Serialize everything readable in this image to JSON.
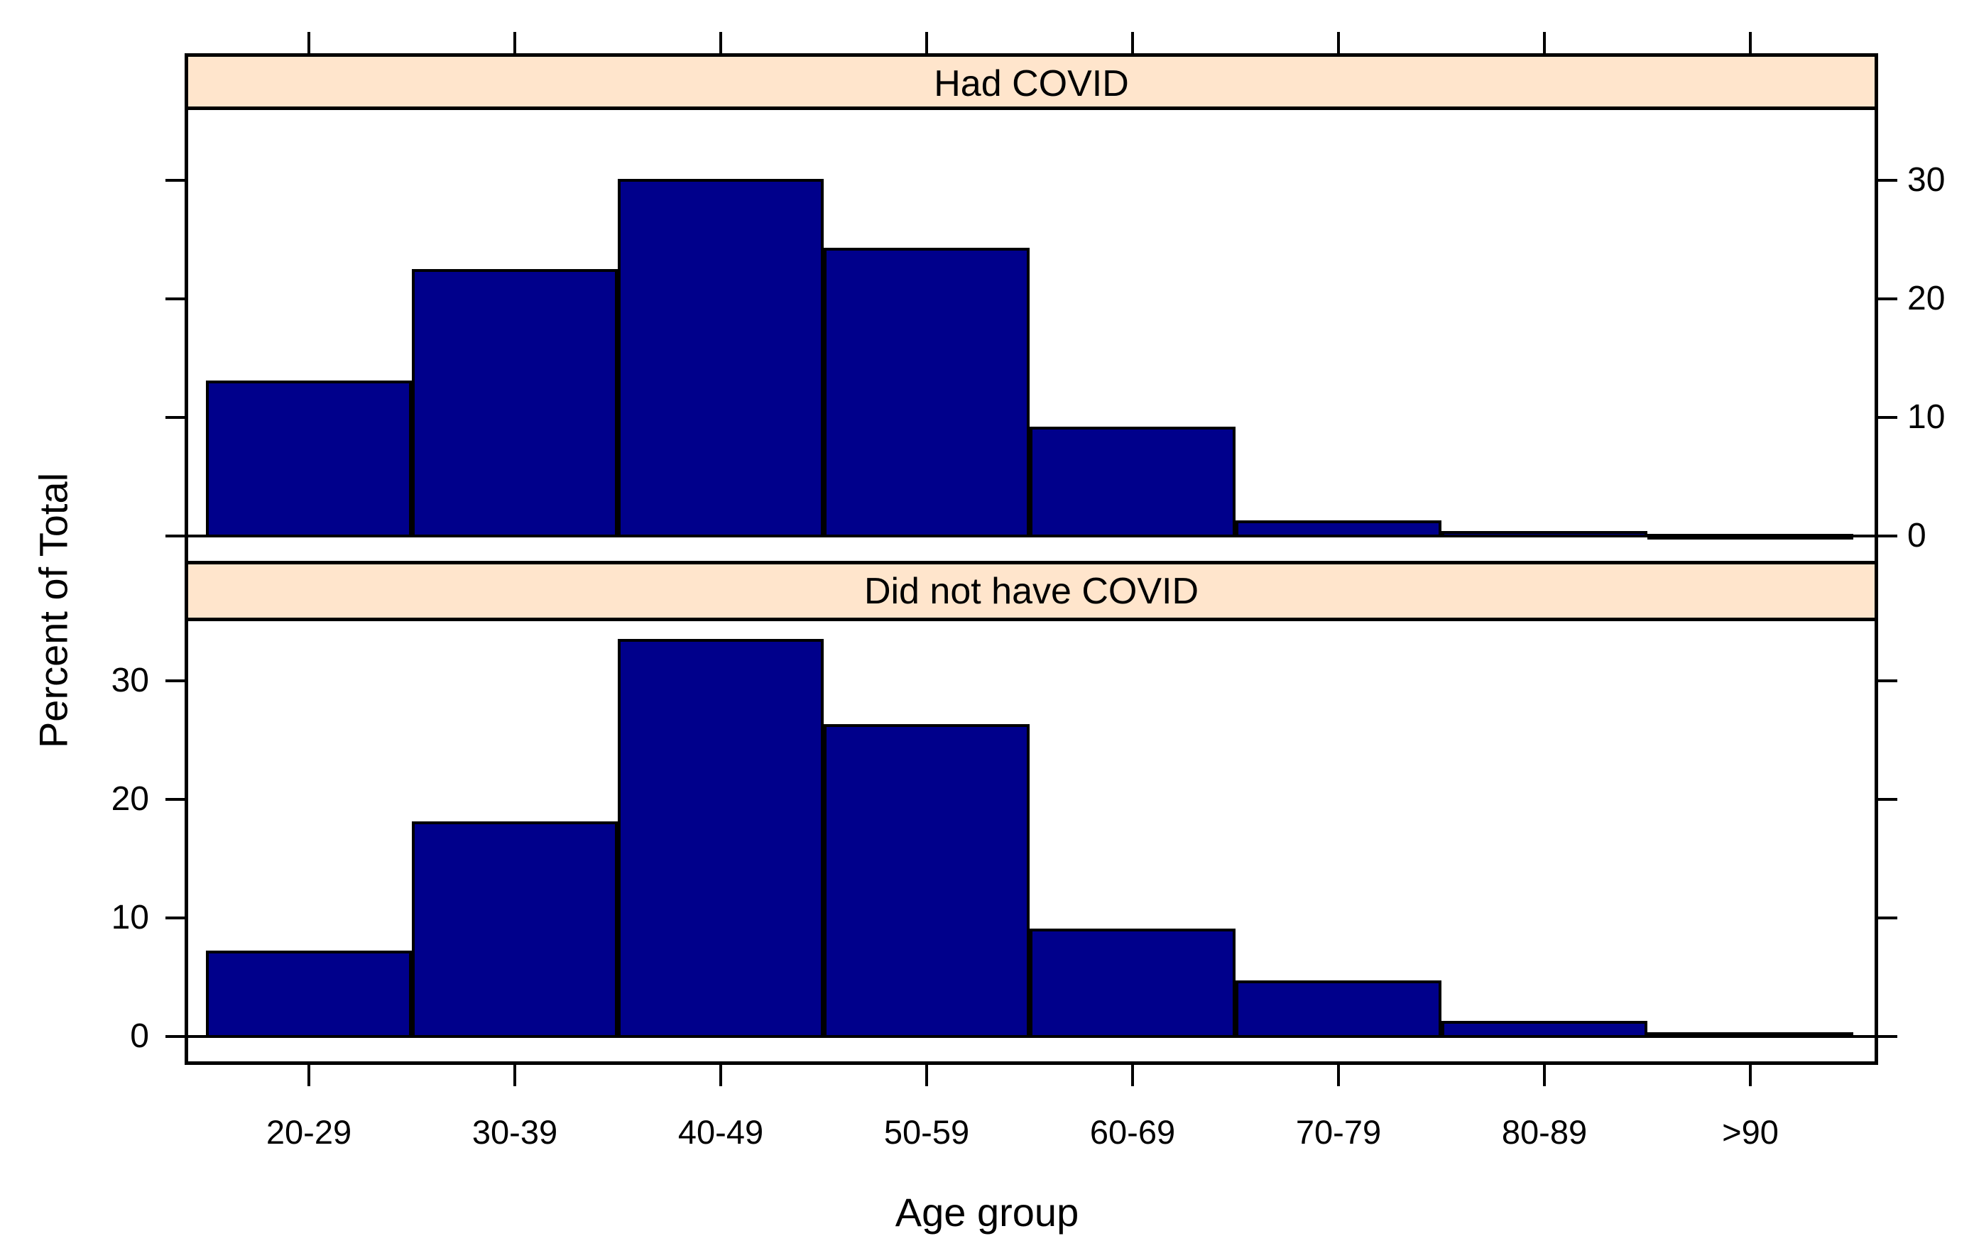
{
  "chart_data": {
    "type": "bar",
    "subtype": "lattice-conditioned-histogram",
    "categories": [
      "20-29",
      "30-39",
      "40-49",
      "50-59",
      "60-69",
      "70-79",
      "80-89",
      ">90"
    ],
    "series": [
      {
        "name": "Had COVID",
        "values": [
          13,
          22.4,
          30,
          24.2,
          9.1,
          1.2,
          0.3,
          0.05
        ]
      },
      {
        "name": "Did not have COVID",
        "values": [
          7.1,
          18,
          33.4,
          26.2,
          9,
          4.6,
          1.2,
          0.25
        ]
      }
    ],
    "title": "",
    "xlabel": "Age group",
    "ylabel": "Percent of Total",
    "y_ticks": [
      0,
      10,
      20,
      30
    ],
    "ylim": [
      -2.5,
      36
    ],
    "grid": false,
    "legend": "none",
    "panel_order_top_to_bottom": [
      "Had COVID",
      "Did not have COVID"
    ],
    "y_tick_label_side": {
      "Had COVID": "right",
      "Did not have COVID": "left"
    },
    "x_tick_positions": "bar centers, ticks on top edge of figure and below bottom panel",
    "colors": {
      "bar_fill": "#00008b",
      "bar_border": "#000000",
      "strip_bg": "#ffe5cc",
      "panel_border": "#000000",
      "text": "#000000"
    }
  }
}
